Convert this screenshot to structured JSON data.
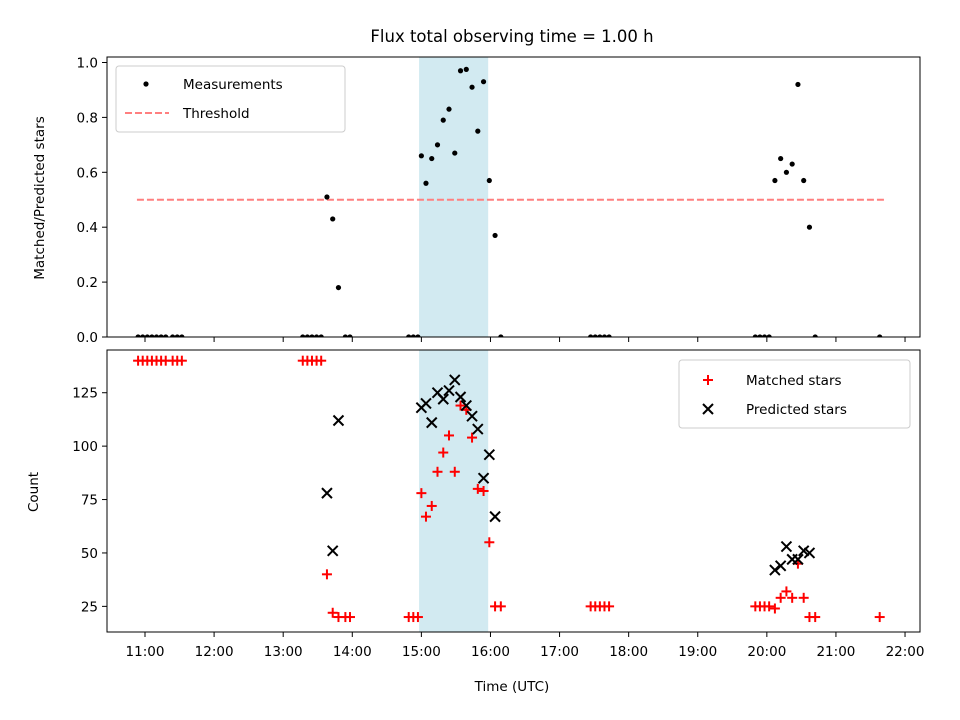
{
  "chart_data": [
    {
      "type": "scatter",
      "title": "Flux total observing time = 1.00 h",
      "xlabel": "",
      "ylabel": "Matched/Predicted stars",
      "xlim": [
        "10:27",
        "22:13"
      ],
      "ylim": [
        0,
        1.02
      ],
      "yticks": [
        "0.0",
        "0.2",
        "0.4",
        "0.6",
        "0.8",
        "1.0"
      ],
      "legend_position": "top-left",
      "highlight_span": {
        "start": "14:58",
        "end": "15:58",
        "color": "#add8e6"
      },
      "threshold": {
        "name": "Threshold",
        "value": 0.5,
        "x_start": "10:53",
        "x_end": "21:43",
        "color": "#ff7f7f"
      },
      "series": [
        {
          "name": "Measurements",
          "color": "#000000",
          "marker": "dot",
          "points": [
            {
              "x": "10:54",
              "y": 0
            },
            {
              "x": "10:58",
              "y": 0
            },
            {
              "x": "11:02",
              "y": 0
            },
            {
              "x": "11:06",
              "y": 0
            },
            {
              "x": "11:10",
              "y": 0
            },
            {
              "x": "11:14",
              "y": 0
            },
            {
              "x": "11:18",
              "y": 0
            },
            {
              "x": "11:24",
              "y": 0
            },
            {
              "x": "11:28",
              "y": 0
            },
            {
              "x": "11:32",
              "y": 0
            },
            {
              "x": "13:17",
              "y": 0
            },
            {
              "x": "13:21",
              "y": 0
            },
            {
              "x": "13:25",
              "y": 0
            },
            {
              "x": "13:29",
              "y": 0
            },
            {
              "x": "13:33",
              "y": 0
            },
            {
              "x": "13:38",
              "y": 0.51
            },
            {
              "x": "13:43",
              "y": 0.43
            },
            {
              "x": "13:48",
              "y": 0.18
            },
            {
              "x": "13:54",
              "y": 0
            },
            {
              "x": "13:58",
              "y": 0
            },
            {
              "x": "14:49",
              "y": 0
            },
            {
              "x": "14:53",
              "y": 0
            },
            {
              "x": "14:57",
              "y": 0
            },
            {
              "x": "15:00",
              "y": 0.66
            },
            {
              "x": "15:04",
              "y": 0.56
            },
            {
              "x": "15:09",
              "y": 0.65
            },
            {
              "x": "15:14",
              "y": 0.7
            },
            {
              "x": "15:19",
              "y": 0.79
            },
            {
              "x": "15:24",
              "y": 0.83
            },
            {
              "x": "15:29",
              "y": 0.67
            },
            {
              "x": "15:34",
              "y": 0.97
            },
            {
              "x": "15:39",
              "y": 0.975
            },
            {
              "x": "15:44",
              "y": 0.91
            },
            {
              "x": "15:49",
              "y": 0.75
            },
            {
              "x": "15:54",
              "y": 0.93
            },
            {
              "x": "15:59",
              "y": 0.57
            },
            {
              "x": "16:04",
              "y": 0.37
            },
            {
              "x": "16:09",
              "y": 0
            },
            {
              "x": "17:27",
              "y": 0
            },
            {
              "x": "17:31",
              "y": 0
            },
            {
              "x": "17:35",
              "y": 0
            },
            {
              "x": "17:39",
              "y": 0
            },
            {
              "x": "17:43",
              "y": 0
            },
            {
              "x": "19:50",
              "y": 0
            },
            {
              "x": "19:54",
              "y": 0
            },
            {
              "x": "19:58",
              "y": 0
            },
            {
              "x": "20:02",
              "y": 0
            },
            {
              "x": "20:07",
              "y": 0.57
            },
            {
              "x": "20:12",
              "y": 0.65
            },
            {
              "x": "20:17",
              "y": 0.6
            },
            {
              "x": "20:22",
              "y": 0.63
            },
            {
              "x": "20:27",
              "y": 0.92
            },
            {
              "x": "20:32",
              "y": 0.57
            },
            {
              "x": "20:37",
              "y": 0.4
            },
            {
              "x": "20:42",
              "y": 0
            },
            {
              "x": "21:38",
              "y": 0
            }
          ]
        }
      ]
    },
    {
      "type": "scatter",
      "title": "",
      "xlabel": "Time (UTC)",
      "ylabel": "Count",
      "xlim": [
        "10:27",
        "22:13"
      ],
      "ylim": [
        13,
        145
      ],
      "yticks": [
        "25",
        "50",
        "75",
        "100",
        "125"
      ],
      "xticks": [
        "11:00",
        "12:00",
        "13:00",
        "14:00",
        "15:00",
        "16:00",
        "17:00",
        "18:00",
        "19:00",
        "20:00",
        "21:00",
        "22:00"
      ],
      "legend_position": "top-right",
      "highlight_span": {
        "start": "14:58",
        "end": "15:58",
        "color": "#add8e6"
      },
      "series": [
        {
          "name": "Matched stars",
          "color": "#ff0000",
          "marker": "plus",
          "points": [
            {
              "x": "10:54",
              "y": 140
            },
            {
              "x": "10:58",
              "y": 140
            },
            {
              "x": "11:02",
              "y": 140
            },
            {
              "x": "11:06",
              "y": 140
            },
            {
              "x": "11:10",
              "y": 140
            },
            {
              "x": "11:14",
              "y": 140
            },
            {
              "x": "11:18",
              "y": 140
            },
            {
              "x": "11:24",
              "y": 140
            },
            {
              "x": "11:28",
              "y": 140
            },
            {
              "x": "11:32",
              "y": 140
            },
            {
              "x": "13:17",
              "y": 140
            },
            {
              "x": "13:21",
              "y": 140
            },
            {
              "x": "13:25",
              "y": 140
            },
            {
              "x": "13:29",
              "y": 140
            },
            {
              "x": "13:33",
              "y": 140
            },
            {
              "x": "13:38",
              "y": 40
            },
            {
              "x": "13:43",
              "y": 22
            },
            {
              "x": "13:48",
              "y": 20
            },
            {
              "x": "13:54",
              "y": 20
            },
            {
              "x": "13:58",
              "y": 20
            },
            {
              "x": "14:49",
              "y": 20
            },
            {
              "x": "14:53",
              "y": 20
            },
            {
              "x": "14:57",
              "y": 20
            },
            {
              "x": "15:00",
              "y": 78
            },
            {
              "x": "15:04",
              "y": 67
            },
            {
              "x": "15:09",
              "y": 72
            },
            {
              "x": "15:14",
              "y": 88
            },
            {
              "x": "15:19",
              "y": 97
            },
            {
              "x": "15:24",
              "y": 105
            },
            {
              "x": "15:29",
              "y": 88
            },
            {
              "x": "15:34",
              "y": 119
            },
            {
              "x": "15:39",
              "y": 117
            },
            {
              "x": "15:44",
              "y": 104
            },
            {
              "x": "15:49",
              "y": 80
            },
            {
              "x": "15:54",
              "y": 79
            },
            {
              "x": "15:59",
              "y": 55
            },
            {
              "x": "16:04",
              "y": 25
            },
            {
              "x": "16:09",
              "y": 25
            },
            {
              "x": "17:27",
              "y": 25
            },
            {
              "x": "17:31",
              "y": 25
            },
            {
              "x": "17:35",
              "y": 25
            },
            {
              "x": "17:39",
              "y": 25
            },
            {
              "x": "17:43",
              "y": 25
            },
            {
              "x": "19:50",
              "y": 25
            },
            {
              "x": "19:54",
              "y": 25
            },
            {
              "x": "19:58",
              "y": 25
            },
            {
              "x": "20:02",
              "y": 25
            },
            {
              "x": "20:07",
              "y": 24
            },
            {
              "x": "20:12",
              "y": 29
            },
            {
              "x": "20:17",
              "y": 32
            },
            {
              "x": "20:22",
              "y": 29
            },
            {
              "x": "20:27",
              "y": 45
            },
            {
              "x": "20:32",
              "y": 29
            },
            {
              "x": "20:37",
              "y": 20
            },
            {
              "x": "20:42",
              "y": 20
            },
            {
              "x": "21:38",
              "y": 20
            }
          ]
        },
        {
          "name": "Predicted stars",
          "color": "#000000",
          "marker": "x",
          "points": [
            {
              "x": "13:38",
              "y": 78
            },
            {
              "x": "13:43",
              "y": 51
            },
            {
              "x": "13:48",
              "y": 112
            },
            {
              "x": "15:00",
              "y": 118
            },
            {
              "x": "15:04",
              "y": 120
            },
            {
              "x": "15:09",
              "y": 111
            },
            {
              "x": "15:14",
              "y": 125
            },
            {
              "x": "15:19",
              "y": 122
            },
            {
              "x": "15:24",
              "y": 126
            },
            {
              "x": "15:29",
              "y": 131
            },
            {
              "x": "15:34",
              "y": 123
            },
            {
              "x": "15:39",
              "y": 119
            },
            {
              "x": "15:44",
              "y": 114
            },
            {
              "x": "15:49",
              "y": 108
            },
            {
              "x": "15:54",
              "y": 85
            },
            {
              "x": "15:59",
              "y": 96
            },
            {
              "x": "16:04",
              "y": 67
            },
            {
              "x": "20:07",
              "y": 42
            },
            {
              "x": "20:12",
              "y": 44
            },
            {
              "x": "20:17",
              "y": 53
            },
            {
              "x": "20:22",
              "y": 47
            },
            {
              "x": "20:27",
              "y": 47
            },
            {
              "x": "20:32",
              "y": 51
            },
            {
              "x": "20:37",
              "y": 50
            }
          ]
        }
      ]
    }
  ]
}
